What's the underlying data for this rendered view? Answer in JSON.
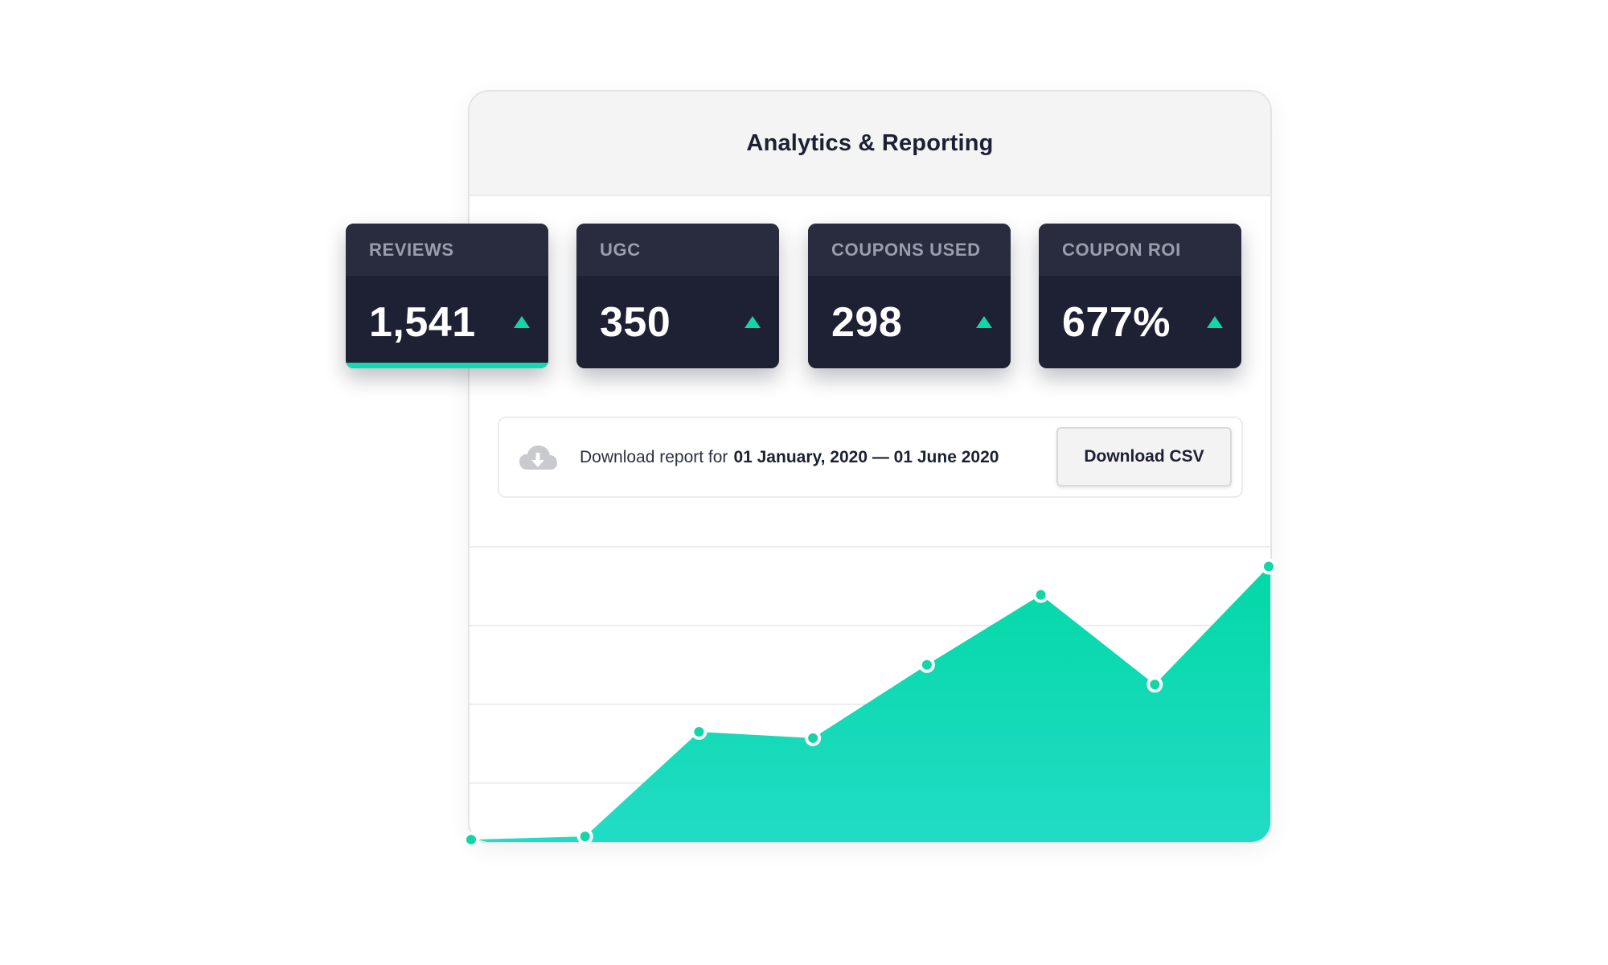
{
  "panel": {
    "title": "Analytics & Reporting"
  },
  "stats": [
    {
      "label": "REVIEWS",
      "value": "1,541",
      "trend": "up"
    },
    {
      "label": "UGC",
      "value": "350",
      "trend": "up"
    },
    {
      "label": "COUPONS USED",
      "value": "298",
      "trend": "up"
    },
    {
      "label": "COUPON ROI",
      "value": "677%",
      "trend": "up"
    }
  ],
  "download": {
    "prefix": "Download report for",
    "range": "01 January, 2020 — 01 June 2020",
    "button_label": "Download CSV",
    "icon": "cloud-download-icon"
  },
  "colors": {
    "accent": "#11d6a8",
    "card_bg": "#1d2133",
    "card_head": "#282c3e",
    "area_top": "#02d8a6",
    "area_bottom": "#22dcc6"
  },
  "chart_data": {
    "type": "area",
    "title": "",
    "xlabel": "",
    "ylabel": "",
    "x": [
      1,
      2,
      3,
      4,
      5,
      6,
      7,
      8
    ],
    "values": [
      3,
      7,
      140,
      132,
      225,
      314,
      200,
      350
    ],
    "ylim": [
      0,
      375
    ],
    "gridlines": [
      75,
      175,
      275,
      375
    ],
    "grid": true
  }
}
